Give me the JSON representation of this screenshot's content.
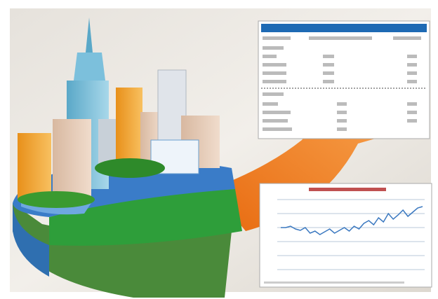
{
  "chart_data": {
    "type": "line",
    "values": [
      60,
      60,
      62,
      58,
      56,
      60,
      52,
      55,
      50,
      54,
      58,
      52,
      56,
      60,
      55,
      62,
      58,
      66,
      70,
      64,
      74,
      68,
      80,
      72,
      78,
      85,
      76,
      82,
      88,
      90
    ],
    "ylim": [
      0,
      100
    ],
    "color": "#3a78c0"
  }
}
